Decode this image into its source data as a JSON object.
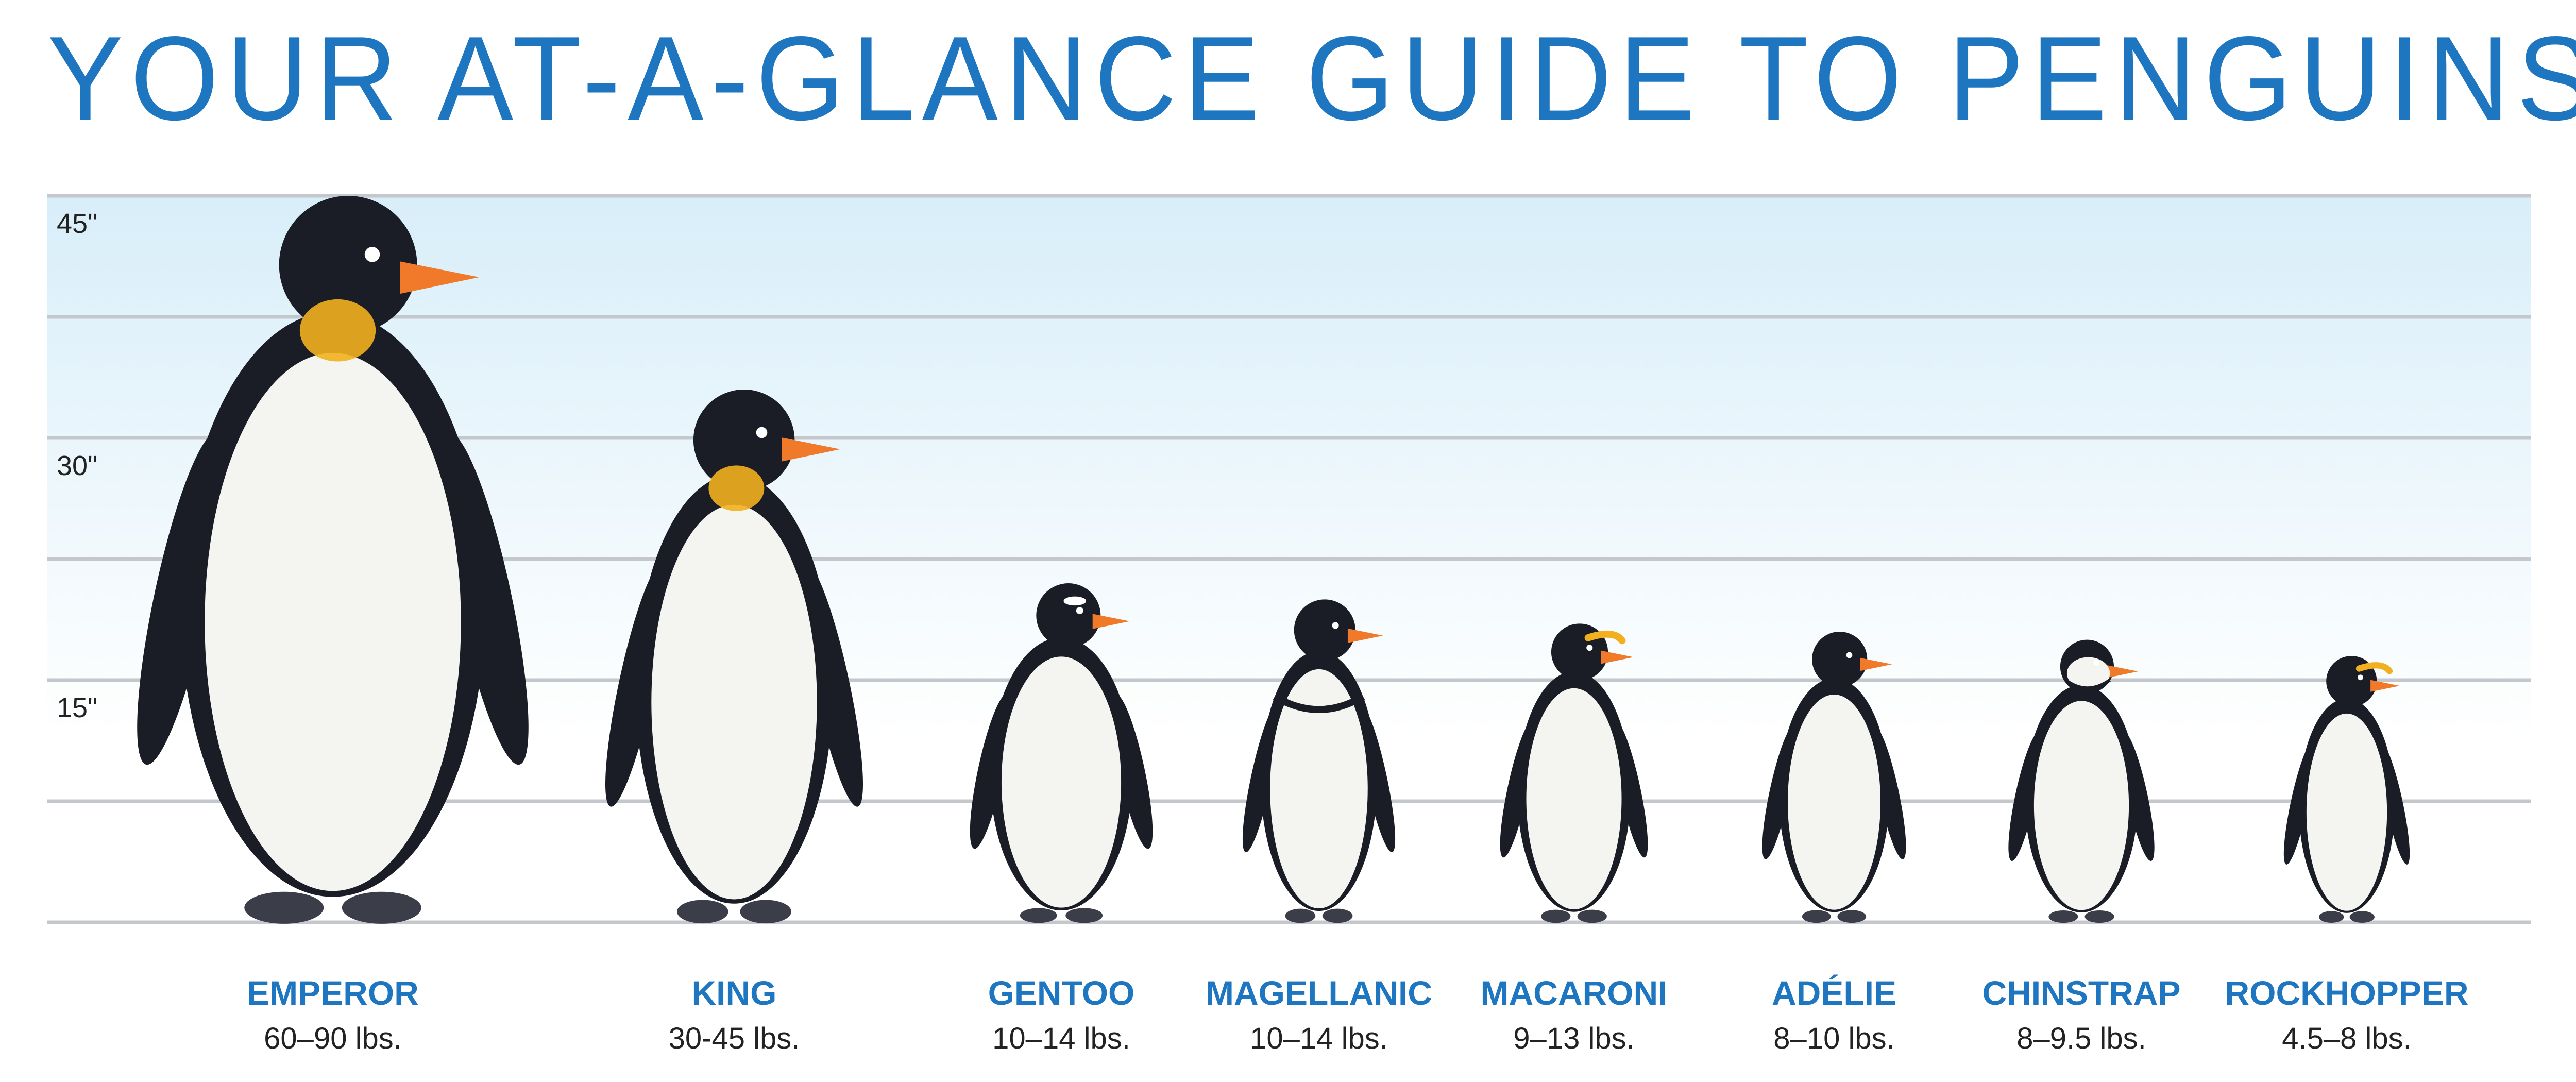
{
  "title": "YOUR AT-A-GLANCE GUIDE TO PENGUINS",
  "colors": {
    "title": "#1e76c0",
    "species_label": "#1e76c0",
    "weight_label": "#222222",
    "gridline": "#c4c8cc",
    "band_top": "#d8eef9",
    "band_bottom": "#ffffff",
    "penguin_black": "#1b1d26",
    "penguin_white": "#f4f5f1",
    "penguin_yellow": "#f2b01e",
    "penguin_orange": "#f07a2a",
    "penguin_feet": "#3b3d48"
  },
  "chart_data": {
    "type": "bar",
    "ylim": [
      0,
      45
    ],
    "yticks": [
      0,
      7.5,
      15,
      22.5,
      30,
      37.5,
      45
    ],
    "ytick_labels": [
      {
        "value": 15,
        "label": "15\""
      },
      {
        "value": 30,
        "label": "30\""
      },
      {
        "value": 45,
        "label": "45\""
      }
    ],
    "grid": true,
    "categories": [
      "EMPEROR",
      "KING",
      "GENTOO",
      "MAGELLANIC",
      "MACARONI",
      "ADÉLIE",
      "CHINSTRAP",
      "ROCKHOPPER"
    ],
    "weights": [
      "60–90 lbs.",
      "30-45 lbs.",
      "10–14 lbs.",
      "10–14 lbs.",
      "9–13 lbs.",
      "8–10 lbs.",
      "8–9.5 lbs.",
      "4.5–8 lbs."
    ],
    "values": [
      45,
      33,
      21,
      20,
      18.5,
      18,
      17.5,
      16.5
    ]
  }
}
